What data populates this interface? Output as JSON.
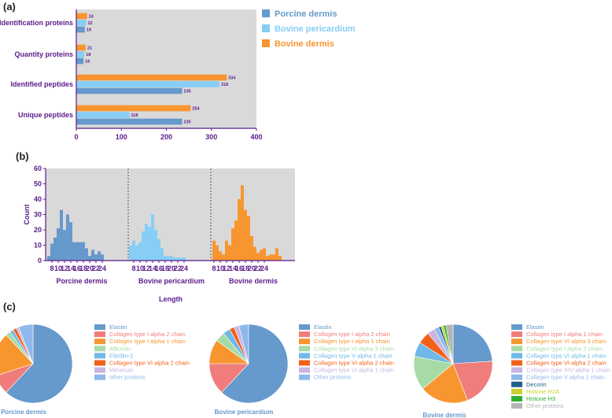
{
  "panels": {
    "a": "(a)",
    "b": "(b)",
    "c": "(c)"
  },
  "colors": {
    "porcine": "#6699cc",
    "pericardium": "#87cef7",
    "bovine": "#f7962f",
    "plot_bg": "#d9d9d9",
    "axis": "#5b1a8a"
  },
  "chart_data": [
    {
      "type": "bar",
      "orientation": "horizontal",
      "categories": [
        "Identification proteins",
        "Quantity proteins",
        "Identified peptides",
        "Unique peptides"
      ],
      "series": [
        {
          "name": "Porcine dermis",
          "values": [
            19,
            16,
            235,
            235
          ]
        },
        {
          "name": "Bovine pericardium",
          "values": [
            22,
            18,
            318,
            118
          ]
        },
        {
          "name": "Bovine dermis",
          "values": [
            24,
            21,
            334,
            254
          ]
        }
      ],
      "xticks": [
        "0",
        "100",
        "200",
        "300",
        "400"
      ],
      "xlim": [
        0,
        400
      ]
    },
    {
      "type": "bar",
      "title": "",
      "xlabel": "Length",
      "ylabel": "Count",
      "ylim": [
        0,
        60
      ],
      "yticks": [
        "0",
        "10",
        "20",
        "30",
        "40",
        "50",
        "60"
      ],
      "xticks": [
        "8",
        "10",
        "12",
        "14",
        "16",
        "18",
        "20",
        "22",
        "24"
      ],
      "groups": [
        {
          "name": "Porcine dermis",
          "x_start": 7,
          "values": [
            3,
            11,
            15,
            21,
            33,
            20,
            30,
            25,
            12,
            12,
            12,
            12,
            8,
            3,
            7,
            4,
            6,
            4
          ]
        },
        {
          "name": "Bovine pericardium",
          "x_start": 7,
          "values": [
            10,
            13,
            10,
            12,
            19,
            24,
            22,
            30,
            20,
            14,
            8,
            3,
            3,
            3,
            2,
            2,
            2,
            2
          ]
        },
        {
          "name": "Bovine dermis",
          "x_start": 8,
          "values": [
            13,
            10,
            6,
            4,
            13,
            10,
            21,
            26,
            40,
            49,
            33,
            29,
            16,
            9,
            5,
            7,
            8,
            3,
            4,
            4,
            8,
            3
          ]
        }
      ]
    },
    {
      "type": "pie",
      "title": "Porcine dermis",
      "labels": [
        "Elastin",
        "Collagen type I alpha 2 chain",
        "Collagen type I alpha 1 chain",
        "Albumin",
        "Fibrillin-1",
        "Collagen type VI alpha 2 chain",
        "Mimecan",
        "other proteins"
      ],
      "values": [
        62,
        8,
        18,
        2,
        1.5,
        1.5,
        1,
        6
      ],
      "colors": [
        "#6699cc",
        "#f07c7c",
        "#f7962f",
        "#a7dba5",
        "#6fb8e8",
        "#f2611a",
        "#c8b6e2",
        "#8fb8ec"
      ]
    },
    {
      "type": "pie",
      "title": "Bovine pericardium",
      "labels": [
        "Elastin",
        "Collagen type I alpha 2 chain",
        "Collagen type I alpha 1 chain",
        "Collagen type VI alpha 3 chain",
        "Collagen type V alpha 1 chain",
        "Collagen type VI alpha 2 chain",
        "Collagen type VI alpha 1 chain",
        "Other proteins"
      ],
      "values": [
        62,
        13,
        10,
        4,
        3,
        2,
        2,
        4
      ],
      "colors": [
        "#6699cc",
        "#f07c7c",
        "#f7962f",
        "#a7dba5",
        "#6fb8e8",
        "#f2611a",
        "#c8b6e2",
        "#8fb8ec"
      ]
    },
    {
      "type": "pie",
      "title": "Bovine dermis",
      "labels": [
        "Elastin",
        "Collagen type I alpha 1 chain",
        "Collagen type VI alpha 3 chain",
        "Collagen type I alpha 2 chain",
        "Collagen type VI alpha 1 chain",
        "Collagen type VI alpha 2 chain",
        "Collagen type XIV alpha 1 chain",
        "Collagen type V alpha 1 chain",
        "Decorin",
        "Histone H2A",
        "Histone H3",
        "Other proteins"
      ],
      "values": [
        24,
        20,
        20,
        14,
        6,
        5,
        3,
        2,
        1,
        1,
        1,
        3
      ],
      "colors": [
        "#6699cc",
        "#f07c7c",
        "#f7962f",
        "#a7dba5",
        "#6fb8e8",
        "#f2611a",
        "#c8b6e2",
        "#8fb8ec",
        "#1f5f8a",
        "#c9d12e",
        "#2fae2f",
        "#b5b5b5"
      ]
    }
  ]
}
